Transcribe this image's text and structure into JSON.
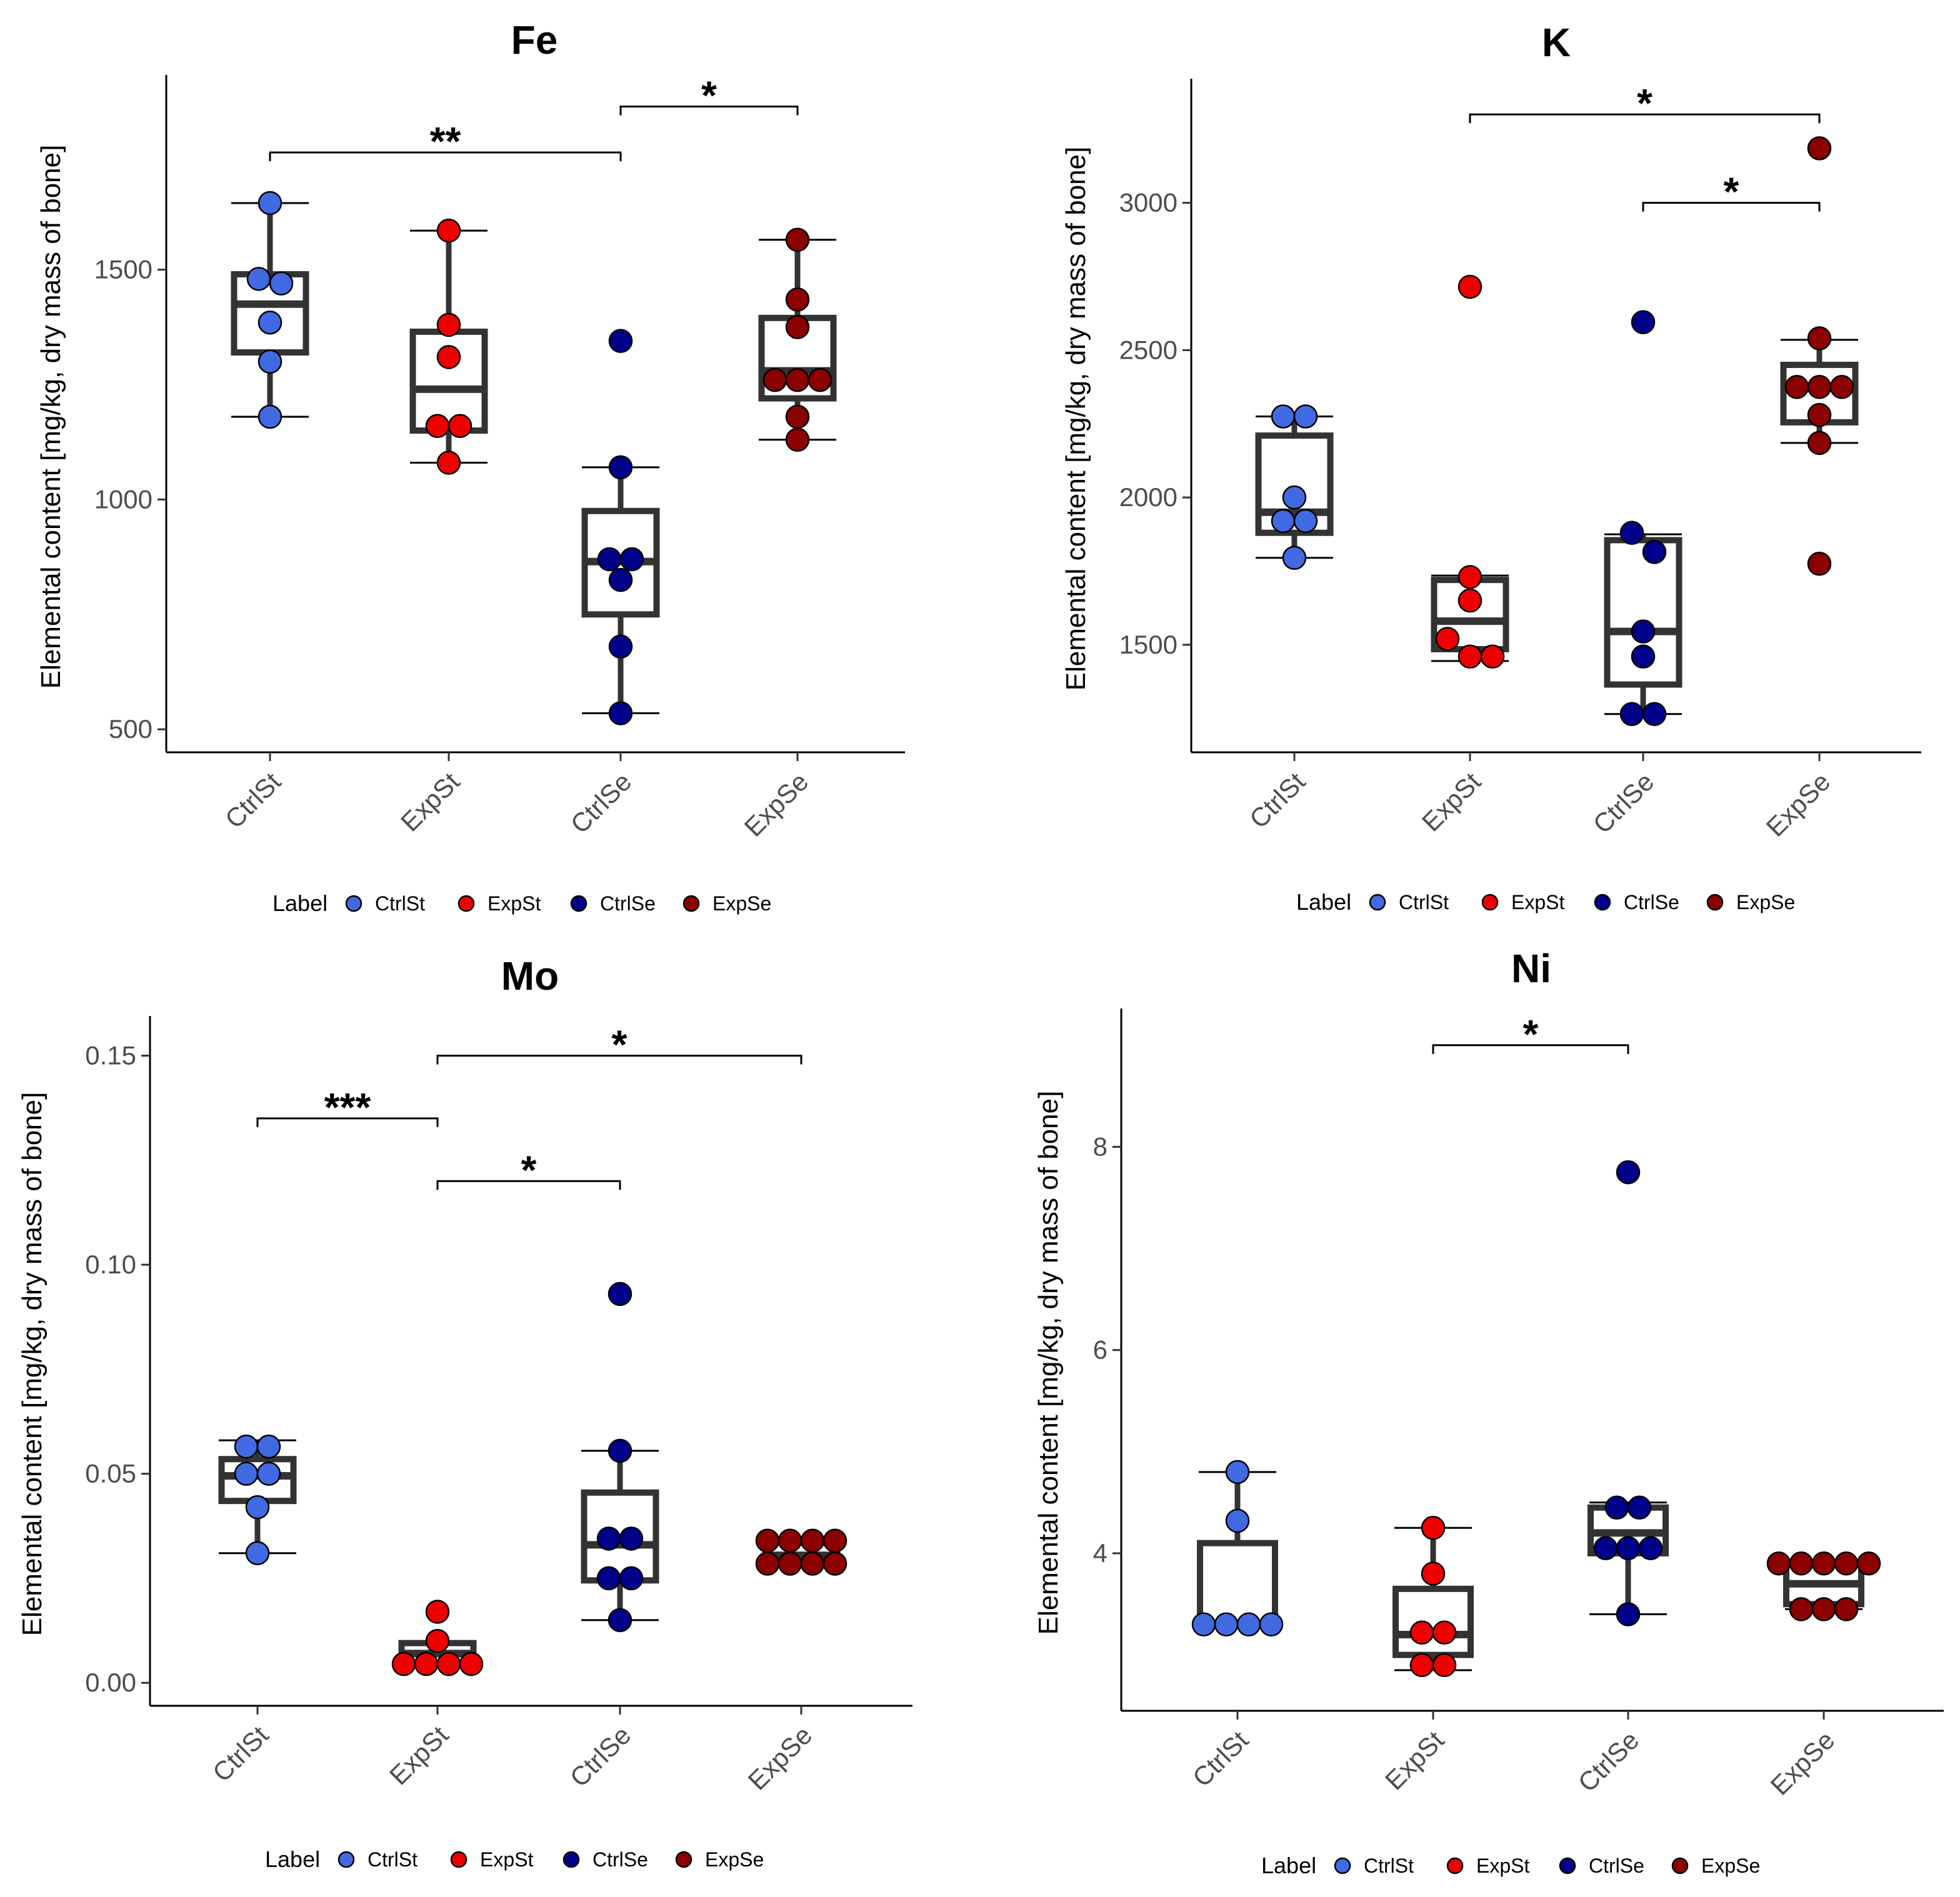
{
  "chart_data": [
    {
      "type": "boxplot",
      "title": "Fe",
      "ylabel": "Elemental content [mg/kg, dry mass of bone]",
      "xlabel": "",
      "categories": [
        "CtrlSt",
        "ExpSt",
        "CtrlSe",
        "ExpSe"
      ],
      "ylim": [
        450,
        1910
      ],
      "yticks": [
        500,
        1000,
        1500
      ],
      "ytick_labels": [
        "500",
        "1000",
        "1500"
      ],
      "boxes": [
        {
          "q1": 1320,
          "median": 1425,
          "q3": 1490,
          "min": 1180,
          "max": 1645
        },
        {
          "q1": 1150,
          "median": 1240,
          "q3": 1365,
          "min": 1080,
          "max": 1585
        },
        {
          "q1": 750,
          "median": 865,
          "q3": 975,
          "min": 535,
          "max": 1070
        },
        {
          "q1": 1220,
          "median": 1280,
          "q3": 1395,
          "min": 1130,
          "max": 1565
        }
      ],
      "points": [
        [
          1645,
          1480,
          1470,
          1385,
          1300,
          1180
        ],
        [
          1585,
          1380,
          1310,
          1160,
          1160,
          1080
        ],
        [
          1345,
          1070,
          870,
          870,
          825,
          680,
          535
        ],
        [
          1565,
          1435,
          1375,
          1260,
          1260,
          1260,
          1180,
          1130
        ]
      ],
      "significance": [
        {
          "from": 0,
          "to": 2,
          "y": 1755,
          "label": "**"
        },
        {
          "from": 2,
          "to": 3,
          "y": 1855,
          "label": "*"
        }
      ]
    },
    {
      "type": "boxplot",
      "title": "K",
      "ylabel": "Elemental content [mg/kg, dry mass of bone]",
      "xlabel": "",
      "categories": [
        "CtrlSt",
        "ExpSt",
        "CtrlSe",
        "ExpSe"
      ],
      "ylim": [
        1135,
        3400
      ],
      "yticks": [
        1500,
        2000,
        2500,
        3000
      ],
      "ytick_labels": [
        "1500",
        "2000",
        "2500",
        "3000"
      ],
      "boxes": [
        {
          "q1": 1880,
          "median": 1950,
          "q3": 2210,
          "min": 1795,
          "max": 2275
        },
        {
          "q1": 1485,
          "median": 1580,
          "q3": 1720,
          "min": 1445,
          "max": 1735
        },
        {
          "q1": 1365,
          "median": 1545,
          "q3": 1855,
          "min": 1265,
          "max": 1875
        },
        {
          "q1": 2255,
          "median": 2370,
          "q3": 2450,
          "min": 2185,
          "max": 2535
        }
      ],
      "points": [
        [
          2275,
          2275,
          2000,
          1920,
          1920,
          1795
        ],
        [
          2715,
          1730,
          1650,
          1520,
          1460,
          1460
        ],
        [
          2595,
          1880,
          1815,
          1545,
          1460,
          1265,
          1265
        ],
        [
          3185,
          2540,
          2375,
          2375,
          2375,
          2280,
          2185,
          1775
        ]
      ],
      "significance": [
        {
          "from": 1,
          "to": 3,
          "y": 3300,
          "label": "*"
        },
        {
          "from": 2,
          "to": 3,
          "y": 3000,
          "label": "*"
        }
      ]
    },
    {
      "type": "boxplot",
      "title": "Mo",
      "ylabel": "Elemental content [mg/kg, dry mass of bone]",
      "xlabel": "",
      "categories": [
        "CtrlSt",
        "ExpSt",
        "CtrlSe",
        "ExpSe"
      ],
      "ylim": [
        -0.0055,
        0.158
      ],
      "yticks": [
        0.0,
        0.05,
        0.1,
        0.15
      ],
      "ytick_labels": [
        "0.00",
        "0.05",
        "0.10",
        "0.15"
      ],
      "boxes": [
        {
          "q1": 0.0435,
          "median": 0.0495,
          "q3": 0.0535,
          "min": 0.031,
          "max": 0.058
        },
        {
          "q1": 0.0045,
          "median": 0.007,
          "q3": 0.0095,
          "min": 0.0045,
          "max": 0.0095
        },
        {
          "q1": 0.0245,
          "median": 0.033,
          "q3": 0.0455,
          "min": 0.015,
          "max": 0.0555
        },
        {
          "q1": 0.0285,
          "median": 0.0305,
          "q3": 0.0335,
          "min": 0.028,
          "max": 0.034
        }
      ],
      "points": [
        [
          0.0565,
          0.0565,
          0.05,
          0.05,
          0.042,
          0.031
        ],
        [
          0.017,
          0.01,
          0.0045,
          0.0045,
          0.0045,
          0.0045
        ],
        [
          0.093,
          0.0555,
          0.0345,
          0.0345,
          0.025,
          0.025,
          0.015
        ],
        [
          0.034,
          0.034,
          0.034,
          0.034,
          0.0285,
          0.0285,
          0.0285,
          0.0285
        ]
      ],
      "significance": [
        {
          "from": 0,
          "to": 1,
          "y": 0.135,
          "label": "***"
        },
        {
          "from": 1,
          "to": 2,
          "y": 0.12,
          "label": "*"
        },
        {
          "from": 1,
          "to": 3,
          "y": 0.15,
          "label": "*"
        }
      ]
    },
    {
      "type": "boxplot",
      "title": "Ni",
      "ylabel": "Elemental content [mg/kg, dry mass of bone]",
      "xlabel": "",
      "categories": [
        "CtrlSt",
        "ExpSt",
        "CtrlSe",
        "ExpSe"
      ],
      "ylim": [
        2.45,
        9.3
      ],
      "yticks": [
        4,
        6,
        8
      ],
      "ytick_labels": [
        "4",
        "6",
        "8"
      ],
      "boxes": [
        {
          "q1": 3.3,
          "median": 3.3,
          "q3": 4.1,
          "min": 3.3,
          "max": 4.8
        },
        {
          "q1": 3.0,
          "median": 3.2,
          "q3": 3.65,
          "min": 2.85,
          "max": 4.25
        },
        {
          "q1": 4.0,
          "median": 4.2,
          "q3": 4.45,
          "min": 3.4,
          "max": 4.5
        },
        {
          "q1": 3.5,
          "median": 3.7,
          "q3": 3.9,
          "min": 3.45,
          "max": 3.9
        }
      ],
      "points": [
        [
          4.8,
          4.32,
          3.3,
          3.3,
          3.3,
          3.3
        ],
        [
          4.25,
          3.8,
          3.22,
          3.22,
          2.9,
          2.9
        ],
        [
          7.75,
          4.45,
          4.45,
          4.05,
          4.05,
          4.05,
          3.4
        ],
        [
          3.9,
          3.9,
          3.9,
          3.9,
          3.9,
          3.45,
          3.45,
          3.45
        ]
      ],
      "significance": [
        {
          "from": 1,
          "to": 2,
          "y": 9.0,
          "label": "*"
        }
      ]
    }
  ],
  "legend": {
    "title": "Label",
    "entries": [
      {
        "label": "CtrlSt",
        "color": "#4169e1"
      },
      {
        "label": "ExpSt",
        "color": "#ee0000"
      },
      {
        "label": "CtrlSe",
        "color": "#00008b"
      },
      {
        "label": "ExpSe",
        "color": "#8b0000"
      }
    ]
  },
  "colors": {
    "CtrlSt": "#4169e1",
    "ExpSt": "#ee0000",
    "CtrlSe": "#00008b",
    "ExpSe": "#8b0000"
  }
}
